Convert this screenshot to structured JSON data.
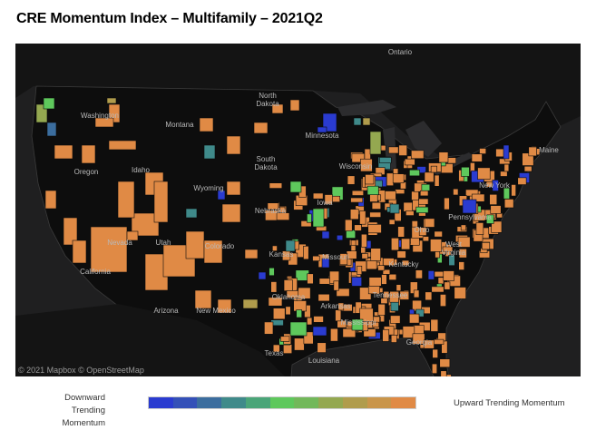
{
  "title": "CRE Momentum Index – Multifamily – 2021Q2",
  "map": {
    "attribution": "© 2021 Mapbox © OpenStreetMap",
    "background_color": "#1f1f20",
    "land_color": "#0d0d0d",
    "labels": [
      "Ontario",
      "North Dakota",
      "Minnesota",
      "Montana",
      "Washington",
      "Oregon",
      "Idaho",
      "Wyoming",
      "South Dakota",
      "Nebraska",
      "Nevada",
      "Utah",
      "Colorado",
      "Kansas",
      "Missouri",
      "California",
      "Oklahoma",
      "Arizona",
      "New Mexico",
      "Arkansas",
      "Texas",
      "Louisiana",
      "Mississippi",
      "Tennessee",
      "Kentucky",
      "Georgia",
      "Florida",
      "West Virginia",
      "Ohio",
      "Iowa",
      "Wisconsin",
      "Pennsylvania",
      "New York",
      "Maine"
    ]
  },
  "legend": {
    "low_label": "Downward Trending Momentum",
    "high_label": "Upward Trending Momentum",
    "colors": [
      "#2a3bd0",
      "#3450b8",
      "#3b6d9e",
      "#3f8a8a",
      "#4aa578",
      "#5ec85c",
      "#72b85a",
      "#94a850",
      "#b09c4c",
      "#c9954a",
      "#e08a45"
    ]
  }
}
